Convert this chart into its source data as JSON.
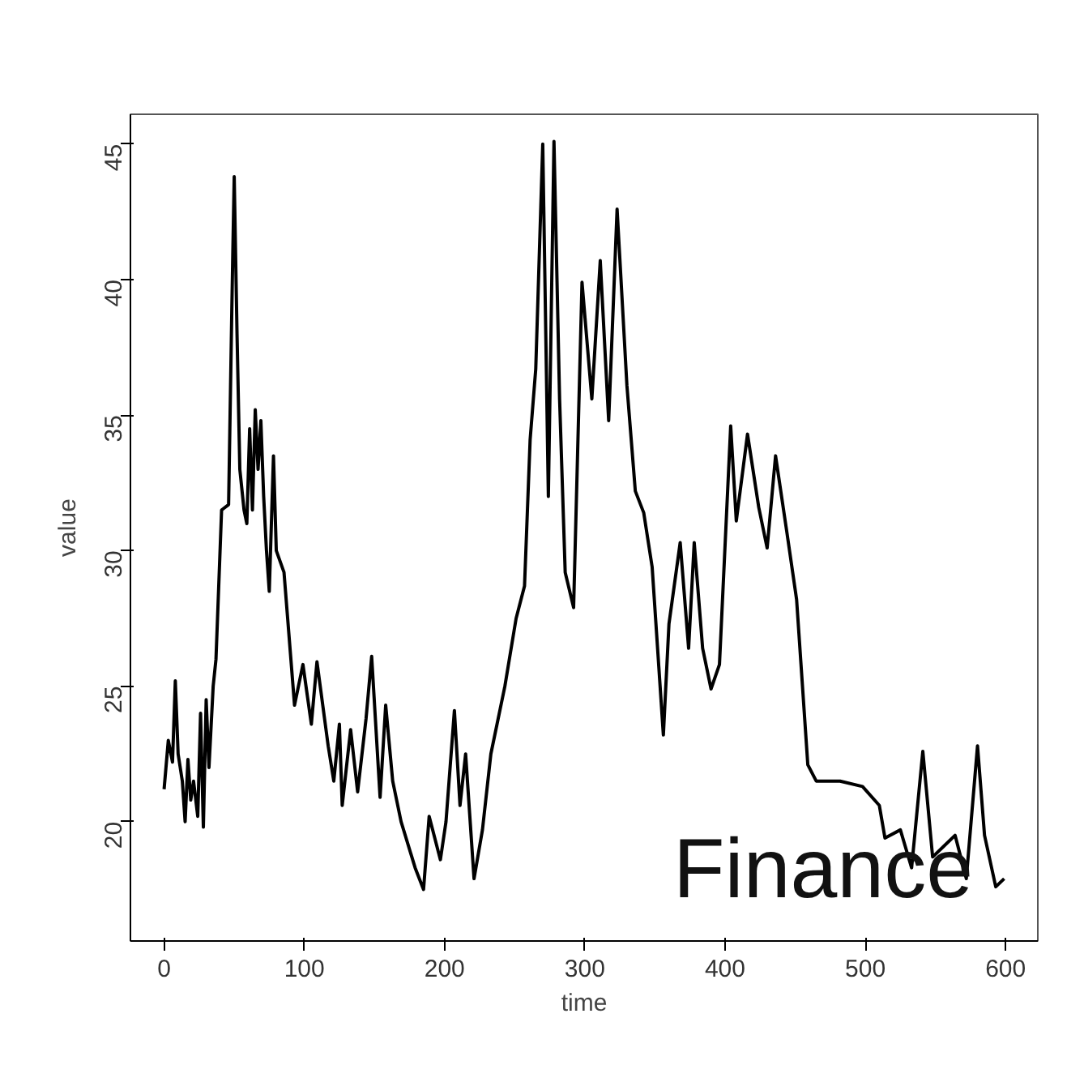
{
  "chart_data": {
    "type": "line",
    "xlabel": "time",
    "ylabel": "value",
    "annotations": [
      "Finance"
    ],
    "x": [
      0,
      3,
      6,
      8,
      10,
      13,
      15,
      17,
      19,
      21,
      24,
      26,
      28,
      30,
      32,
      35,
      37,
      41,
      46,
      48,
      49,
      50,
      52,
      54,
      57,
      59,
      61,
      63,
      65,
      67,
      69,
      71,
      73,
      75,
      78,
      80,
      85.5,
      93,
      99,
      105,
      109,
      117,
      121,
      125,
      127,
      133,
      138,
      144,
      148,
      154,
      158,
      163,
      169,
      179,
      185,
      189,
      197,
      201,
      207,
      211,
      215,
      221,
      227,
      233,
      243,
      251,
      257,
      261,
      265,
      270,
      274,
      278,
      282,
      286,
      292,
      298,
      305,
      311,
      317,
      323,
      330,
      336,
      342,
      348,
      356,
      360,
      368,
      374,
      378,
      384,
      390,
      396,
      404,
      408,
      416,
      424,
      430,
      436,
      444,
      451,
      459,
      465,
      482,
      498,
      510,
      514,
      525,
      533,
      541,
      548,
      556,
      564,
      572,
      580,
      585,
      593,
      599
    ],
    "series": [
      {
        "color": "#000000",
        "values": [
          21.2,
          23.0,
          22.2,
          25.2,
          22.5,
          21.5,
          20.0,
          22.3,
          20.8,
          21.5,
          20.2,
          24.0,
          19.8,
          24.5,
          22.0,
          25.0,
          26.0,
          31.5,
          31.7,
          38,
          41,
          43.8,
          38,
          33,
          31.5,
          31.0,
          34.5,
          31.5,
          35.2,
          33,
          34.8,
          32,
          30,
          28.5,
          33.5,
          30,
          29.2,
          24.3,
          25.8,
          23.6,
          25.9,
          22.8,
          21.5,
          23.6,
          20.6,
          23.4,
          21.1,
          23.8,
          26.1,
          20.9,
          24.3,
          21.5,
          20.0,
          18.3,
          17.5,
          20.2,
          18.6,
          20.0,
          24.1,
          20.6,
          22.5,
          17.9,
          19.7,
          22.5,
          25.0,
          27.5,
          28.7,
          34.1,
          36.7,
          45,
          32,
          45.1,
          35.6,
          29.2,
          27.9,
          39.9,
          35.6,
          40.7,
          34.8,
          42.6,
          36.1,
          32.2,
          31.4,
          29.4,
          23.2,
          27.3,
          30.3,
          26.4,
          30.3,
          26.4,
          24.9,
          25.8,
          34.6,
          31.1,
          34.3,
          31.6,
          30.1,
          33.5,
          30.7,
          28.2,
          22.1,
          21.5,
          21.5,
          21.3,
          20.6,
          19.4,
          19.7,
          18.3,
          22.6,
          18.7,
          19.1,
          19.5,
          17.9,
          22.8,
          19.5,
          17.6,
          17.9
        ]
      }
    ],
    "xlim": [
      -24,
      623
    ],
    "ylim": [
      15.6,
      46.1
    ],
    "xticks": [
      0,
      100,
      200,
      300,
      400,
      500,
      600
    ],
    "yticks": [
      20,
      25,
      30,
      35,
      40,
      45
    ],
    "grid": false,
    "marker": "none",
    "line_style": "solid"
  }
}
